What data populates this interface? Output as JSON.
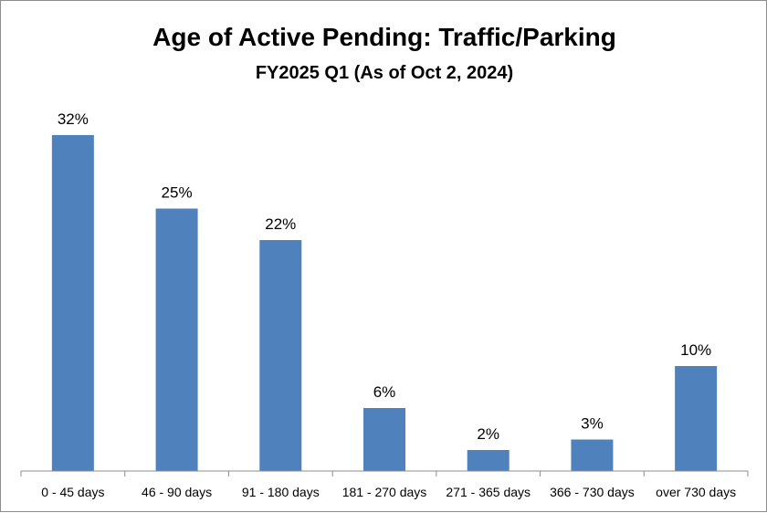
{
  "chart_data": {
    "type": "bar",
    "title": "Age of Active Pending: Traffic/Parking",
    "subtitle": "FY2025 Q1 (As of Oct 2, 2024)",
    "categories": [
      "0 - 45 days",
      "46 - 90 days",
      "91 - 180 days",
      "181 - 270 days",
      "271 - 365 days",
      "366 - 730 days",
      "over 730 days"
    ],
    "values": [
      32,
      25,
      22,
      6,
      2,
      3,
      10
    ],
    "data_labels": [
      "32%",
      "25%",
      "22%",
      "6%",
      "2%",
      "3%",
      "10%"
    ],
    "unit": "%",
    "xlabel": "",
    "ylabel": "",
    "ylim": [
      0,
      35
    ],
    "grid": false,
    "legend": "none",
    "bar_color": "#4f81bd"
  }
}
